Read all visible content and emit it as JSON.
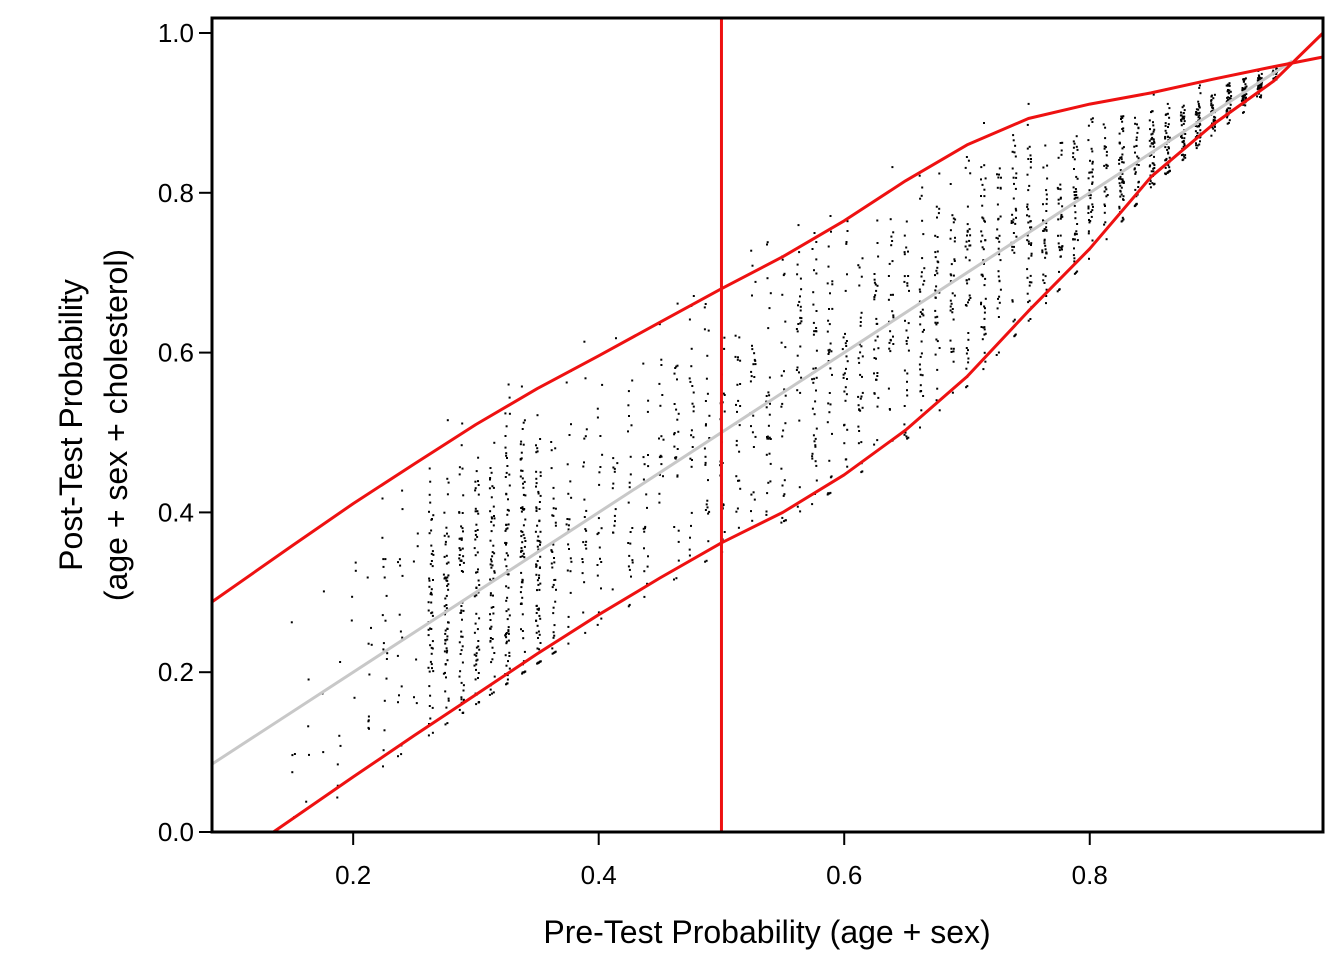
{
  "chart_data": {
    "type": "scatter",
    "title": "",
    "xlabel": "Pre-Test Probability (age + sex)",
    "ylabel_lines": [
      "Post-Test Probability",
      "(age + sex + cholesterol)"
    ],
    "xlim": [
      0.085,
      0.99
    ],
    "ylim": [
      0.0,
      1.0
    ],
    "x_ticks": [
      {
        "value": 0.2,
        "label": "0.2"
      },
      {
        "value": 0.4,
        "label": "0.4"
      },
      {
        "value": 0.6,
        "label": "0.6"
      },
      {
        "value": 0.8,
        "label": "0.8"
      }
    ],
    "y_ticks": [
      {
        "value": 0.0,
        "label": "0.0"
      },
      {
        "value": 0.2,
        "label": "0.2"
      },
      {
        "value": 0.4,
        "label": "0.4"
      },
      {
        "value": 0.6,
        "label": "0.6"
      },
      {
        "value": 0.8,
        "label": "0.8"
      },
      {
        "value": 1.0,
        "label": "1.0"
      }
    ],
    "grid": false,
    "colors": {
      "points": "#000000",
      "identity": "#c8c8c8",
      "bands": "#ee1111",
      "reference": "#ee1111"
    },
    "reference_vline_x": 0.5,
    "identity_line": {
      "x": [
        0.085,
        0.965
      ],
      "y": [
        0.085,
        0.965
      ]
    },
    "upper_band": {
      "x": [
        0.085,
        0.15,
        0.2,
        0.25,
        0.3,
        0.35,
        0.4,
        0.45,
        0.5,
        0.55,
        0.6,
        0.65,
        0.7,
        0.75,
        0.8,
        0.85,
        0.9,
        0.95,
        0.99
      ],
      "y": [
        0.288,
        0.358,
        0.411,
        0.461,
        0.51,
        0.555,
        0.596,
        0.638,
        0.68,
        0.72,
        0.765,
        0.815,
        0.86,
        0.893,
        0.911,
        0.925,
        0.942,
        0.958,
        0.97
      ]
    },
    "lower_band": {
      "x": [
        0.135,
        0.2,
        0.25,
        0.3,
        0.35,
        0.4,
        0.45,
        0.5,
        0.55,
        0.6,
        0.65,
        0.7,
        0.75,
        0.8,
        0.85,
        0.9,
        0.95,
        0.99
      ],
      "y": [
        0.0,
        0.069,
        0.121,
        0.172,
        0.223,
        0.272,
        0.318,
        0.362,
        0.4,
        0.447,
        0.503,
        0.57,
        0.652,
        0.73,
        0.82,
        0.885,
        0.94,
        1.0
      ]
    },
    "points_generation": {
      "count": 2200,
      "x_range": [
        0.12,
        0.95
      ],
      "note_min_y": 0.03
    }
  }
}
